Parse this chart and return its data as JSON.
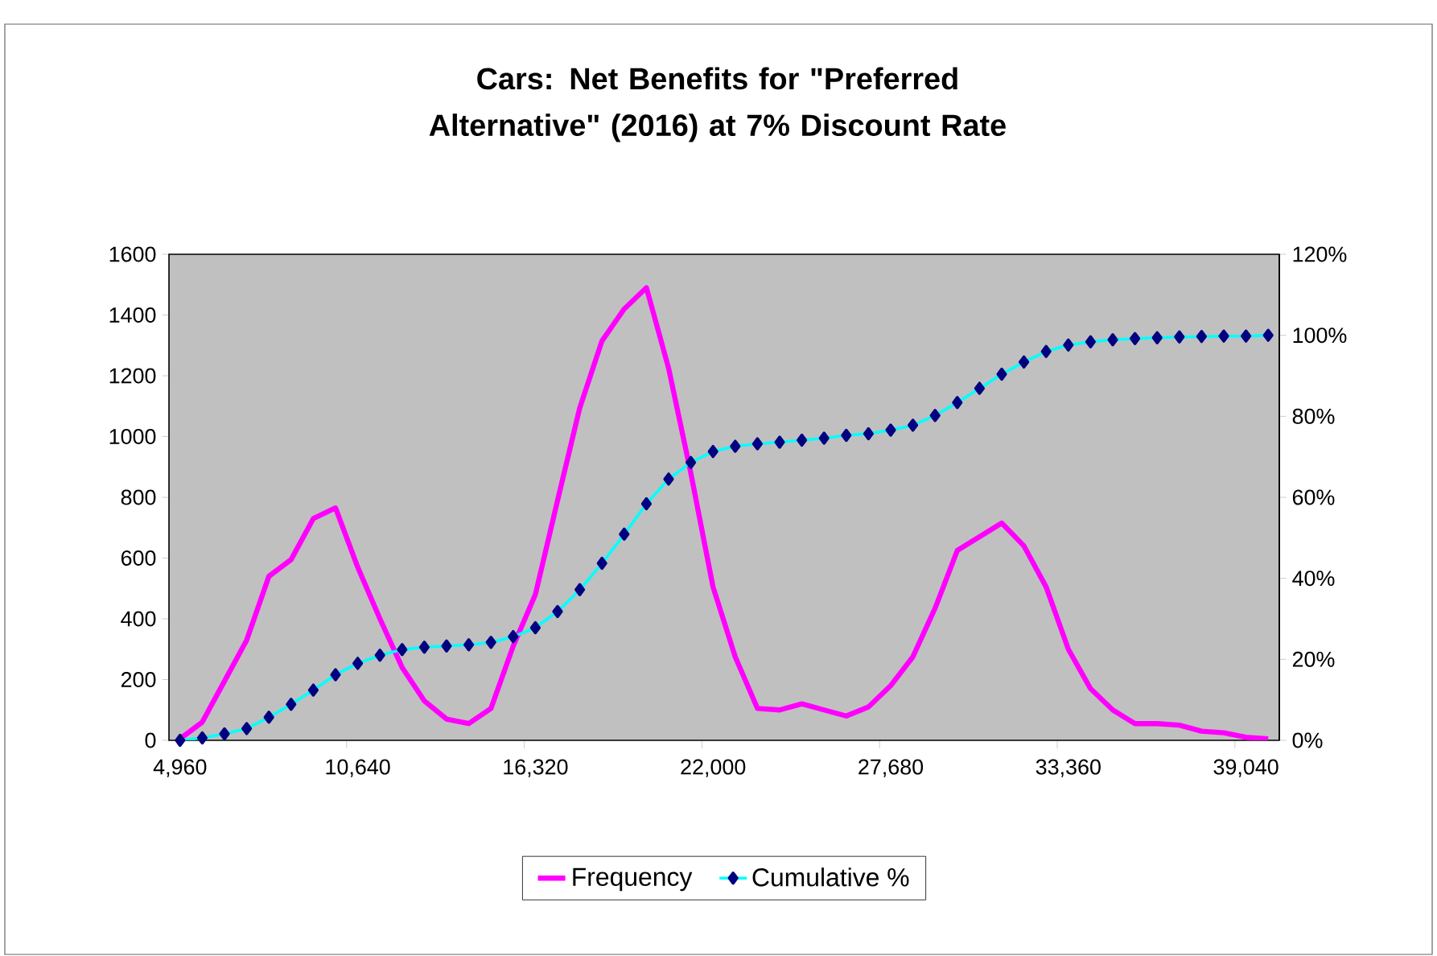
{
  "chart_data": {
    "type": "line",
    "title": "Cars: Net Benefits for \"Preferred Alternative\" (2016) at 7% Discount Rate",
    "categories": [
      "4,960",
      null,
      null,
      null,
      null,
      null,
      null,
      null,
      "10,640",
      null,
      null,
      null,
      null,
      null,
      null,
      null,
      "16,320",
      null,
      null,
      null,
      null,
      null,
      null,
      null,
      "22,000",
      null,
      null,
      null,
      null,
      null,
      null,
      null,
      "27,680",
      null,
      null,
      null,
      null,
      null,
      null,
      null,
      "33,360",
      null,
      null,
      null,
      null,
      null,
      null,
      null,
      "39,040",
      null
    ],
    "series": [
      {
        "name": "Frequency",
        "color": "#ff00ff",
        "marker": "none",
        "values": [
          5,
          60,
          195,
          330,
          540,
          595,
          730,
          765,
          570,
          400,
          240,
          130,
          70,
          55,
          105,
          310,
          480,
          790,
          1095,
          1315,
          1420,
          1490,
          1225,
          880,
          505,
          275,
          105,
          100,
          120,
          100,
          80,
          110,
          180,
          275,
          435,
          625,
          670,
          715,
          640,
          505,
          300,
          170,
          100,
          55,
          55,
          50,
          30,
          25,
          10,
          5
        ]
      },
      {
        "name": "Cumulative %",
        "color": "#00ffff",
        "marker": "diamond",
        "axis": "y2",
        "values": [
          0,
          0.6,
          1.6,
          2.9,
          5.7,
          8.9,
          12.4,
          16.2,
          19.0,
          21.0,
          22.4,
          23.0,
          23.3,
          23.6,
          24.2,
          25.6,
          27.8,
          31.8,
          37.2,
          43.7,
          50.9,
          58.4,
          64.5,
          68.6,
          71.3,
          72.6,
          73.2,
          73.6,
          74.1,
          74.6,
          75.3,
          75.7,
          76.6,
          77.8,
          80.2,
          83.4,
          86.9,
          90.4,
          93.4,
          96.0,
          97.6,
          98.4,
          98.9,
          99.2,
          99.4,
          99.6,
          99.7,
          99.8,
          99.8,
          100
        ]
      }
    ],
    "ylim": [
      0,
      1600
    ],
    "yticks": [
      0,
      200,
      400,
      600,
      800,
      1000,
      1200,
      1400,
      1600
    ],
    "y2lim": [
      0,
      120
    ],
    "y2ticks": [
      {
        "value": 0,
        "label": "0%"
      },
      {
        "value": 20,
        "label": "20%"
      },
      {
        "value": 40,
        "label": "40%"
      },
      {
        "value": 60,
        "label": "60%"
      },
      {
        "value": 80,
        "label": "80%"
      },
      {
        "value": 100,
        "label": "100%"
      },
      {
        "value": 120,
        "label": "120%"
      }
    ],
    "grid": false,
    "legend": "bottom",
    "line_style": "solid"
  }
}
